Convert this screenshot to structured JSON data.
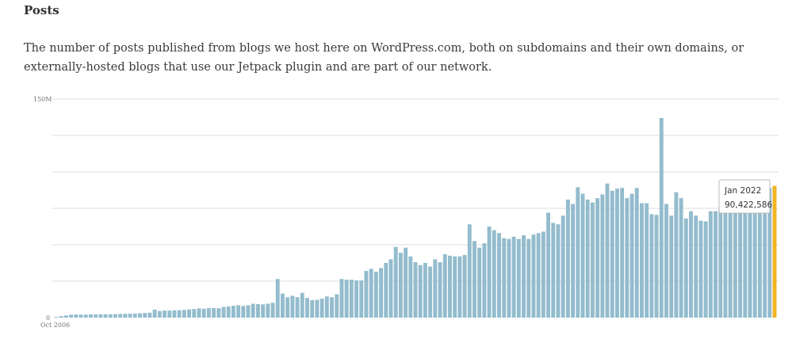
{
  "section": {
    "title": "Posts",
    "description": "The number of posts published from blogs we host here on WordPress.com, both on subdomains and their own domains, or externally-hosted blogs that use our Jetpack plugin and are part of our network."
  },
  "colors": {
    "bar": "#93bccd",
    "highlight": "#f0b323",
    "grid": "#dddddd"
  },
  "chart_data": {
    "type": "bar",
    "title": "",
    "xlabel": "",
    "ylabel": "",
    "ylim": [
      0,
      150
    ],
    "y_unit": "M",
    "y_tick_labels": [
      {
        "value": 0,
        "label": "0"
      },
      {
        "value": 150,
        "label": "150M"
      }
    ],
    "gridlines": [
      25,
      50,
      75,
      100,
      125,
      150
    ],
    "x_start": "Oct 2006",
    "x_tick_labels": [
      {
        "index": 0,
        "label": "Oct 2006"
      }
    ],
    "x_end": "Jan 2022",
    "values": [
      0.5,
      1.0,
      1.5,
      2.0,
      2.1,
      2.0,
      2.1,
      2.2,
      2.2,
      2.3,
      2.3,
      2.3,
      2.4,
      2.5,
      2.6,
      2.7,
      2.8,
      3.0,
      3.2,
      3.4,
      5.5,
      4.5,
      4.8,
      4.8,
      5.0,
      5.1,
      5.3,
      5.6,
      5.9,
      6.3,
      6.1,
      6.5,
      6.6,
      6.4,
      7.3,
      7.6,
      8.1,
      8.5,
      8.0,
      8.5,
      9.5,
      9.3,
      9.1,
      9.5,
      10.2,
      26.5,
      16.5,
      14.0,
      15.0,
      14.0,
      17.0,
      13.5,
      12.0,
      12.2,
      13.0,
      14.5,
      14.0,
      16.0,
      26.5,
      26.0,
      26.0,
      25.5,
      25.5,
      32.0,
      33.5,
      31.5,
      34.0,
      37.5,
      40.0,
      48.5,
      44.5,
      48.0,
      42.0,
      38.0,
      36.0,
      37.5,
      35.0,
      40.0,
      38.0,
      43.5,
      42.5,
      42.0,
      42.0,
      43.0,
      64.0,
      52.5,
      48.0,
      51.0,
      62.5,
      60.0,
      58.0,
      54.5,
      54.0,
      55.5,
      54.0,
      56.5,
      54.0,
      57.0,
      58.0,
      59.0,
      72.0,
      65.0,
      64.0,
      70.0,
      81.0,
      78.0,
      89.5,
      85.0,
      81.0,
      79.0,
      82.0,
      84.5,
      92.0,
      87.0,
      88.5,
      89.0,
      82.0,
      85.0,
      89.0,
      78.5,
      78.5,
      71.0,
      70.5,
      137.0,
      78.0,
      70.0,
      86.0,
      82.0,
      68.0,
      73.0,
      70.0,
      66.5,
      66.0,
      73.0,
      73.0,
      75.5,
      73.0,
      77.5,
      74.0,
      78.5,
      81.0,
      80.0,
      80.0,
      84.0,
      81.5,
      89.0,
      90.4
    ]
  },
  "tooltip": {
    "date": "Jan 2022",
    "value": "90,422,586"
  }
}
